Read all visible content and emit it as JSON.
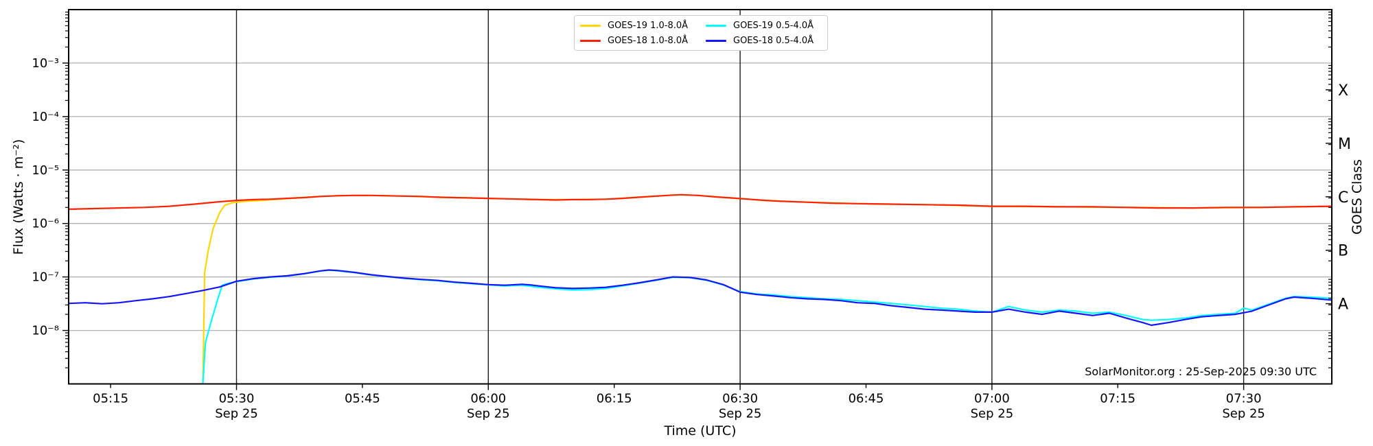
{
  "watermark": "SolarMonitor.org : 25-Sep-2025 09:30 UTC",
  "chart_data": {
    "type": "line",
    "title": "",
    "xlabel": "Time (UTC)",
    "ylabel": "Flux (Watts · m⁻²)",
    "ylabel_right": "GOES Class",
    "x_unit": "minutes_since_midnight_utc",
    "x_range": [
      310,
      460.5
    ],
    "y_log_range_exponents": [
      -9,
      -2
    ],
    "grid": {
      "on": true,
      "h_gridline_exps": [
        -3,
        -4,
        -5,
        -6,
        -7,
        -8
      ],
      "v_gridline_minutes": [
        330,
        360,
        390,
        420,
        450
      ]
    },
    "legend_position": "upper center",
    "x_ticks": [
      {
        "t": 315,
        "label": "05:15"
      },
      {
        "t": 330,
        "label": "05:30",
        "date": "Sep 25"
      },
      {
        "t": 345,
        "label": "05:45"
      },
      {
        "t": 360,
        "label": "06:00",
        "date": "Sep 25"
      },
      {
        "t": 375,
        "label": "06:15"
      },
      {
        "t": 390,
        "label": "06:30",
        "date": "Sep 25"
      },
      {
        "t": 405,
        "label": "06:45"
      },
      {
        "t": 420,
        "label": "07:00",
        "date": "Sep 25"
      },
      {
        "t": 435,
        "label": "07:15"
      },
      {
        "t": 450,
        "label": "07:30",
        "date": "Sep 25"
      }
    ],
    "y_ticks": [
      {
        "exp": -3,
        "label": "10⁻³"
      },
      {
        "exp": -4,
        "label": "10⁻⁴"
      },
      {
        "exp": -5,
        "label": "10⁻⁵"
      },
      {
        "exp": -6,
        "label": "10⁻⁶"
      },
      {
        "exp": -7,
        "label": "10⁻⁷"
      },
      {
        "exp": -8,
        "label": "10⁻⁸"
      }
    ],
    "class_labels": [
      {
        "label": "X",
        "exp": -3.5
      },
      {
        "label": "M",
        "exp": -4.5
      },
      {
        "label": "C",
        "exp": -5.5
      },
      {
        "label": "B",
        "exp": -6.5
      },
      {
        "label": "A",
        "exp": -7.5
      }
    ],
    "colors": {
      "grid_light": "#b0b0b0",
      "grid_dark": "#1a1a1a",
      "spine": "#000000"
    },
    "series": [
      {
        "name": "GOES-19 1.0-8.0Å",
        "color": "#ffd700",
        "points": [
          [
            326,
            1.05e-09
          ],
          [
            326.2,
            1.2e-07
          ],
          [
            326.6,
            3e-07
          ],
          [
            327.2,
            8e-07
          ],
          [
            328,
            1.6e-06
          ],
          [
            328.6,
            2.2e-06
          ],
          [
            329.5,
            2.45e-06
          ],
          [
            331,
            2.6e-06
          ],
          [
            333,
            2.7e-06
          ],
          [
            335,
            2.85e-06
          ],
          [
            337,
            3e-06
          ],
          [
            340,
            3.2e-06
          ],
          [
            342,
            3.3e-06
          ],
          [
            344,
            3.35e-06
          ],
          [
            346,
            3.35e-06
          ],
          [
            350,
            3.25e-06
          ],
          [
            354,
            3.1e-06
          ],
          [
            358,
            3e-06
          ],
          [
            362,
            2.9e-06
          ],
          [
            366,
            2.8e-06
          ],
          [
            370,
            2.8e-06
          ],
          [
            374,
            2.85e-06
          ],
          [
            378,
            3.1e-06
          ],
          [
            382,
            3.4e-06
          ],
          [
            383,
            3.45e-06
          ],
          [
            385,
            3.35e-06
          ],
          [
            389,
            3e-06
          ],
          [
            393,
            2.7e-06
          ],
          [
            398,
            2.5e-06
          ],
          [
            404,
            2.35e-06
          ],
          [
            412,
            2.25e-06
          ],
          [
            420,
            2.1e-06
          ],
          [
            428,
            2.05e-06
          ],
          [
            436,
            2e-06
          ],
          [
            444,
            1.95e-06
          ],
          [
            452,
            2e-06
          ],
          [
            460.5,
            2.1e-06
          ]
        ]
      },
      {
        "name": "GOES-18 1.0-8.0Å",
        "color": "#ff2200",
        "points": [
          [
            310,
            1.85e-06
          ],
          [
            313,
            1.9e-06
          ],
          [
            316,
            1.95e-06
          ],
          [
            319,
            2e-06
          ],
          [
            322,
            2.1e-06
          ],
          [
            325,
            2.3e-06
          ],
          [
            328,
            2.55e-06
          ],
          [
            330,
            2.7e-06
          ],
          [
            332,
            2.8e-06
          ],
          [
            334,
            2.85e-06
          ],
          [
            336,
            2.95e-06
          ],
          [
            338,
            3.05e-06
          ],
          [
            340,
            3.2e-06
          ],
          [
            342,
            3.3e-06
          ],
          [
            344,
            3.35e-06
          ],
          [
            346,
            3.35e-06
          ],
          [
            348,
            3.3e-06
          ],
          [
            350,
            3.25e-06
          ],
          [
            352,
            3.2e-06
          ],
          [
            354,
            3.1e-06
          ],
          [
            356,
            3.05e-06
          ],
          [
            358,
            3e-06
          ],
          [
            360,
            2.95e-06
          ],
          [
            362,
            2.9e-06
          ],
          [
            364,
            2.85e-06
          ],
          [
            366,
            2.8e-06
          ],
          [
            368,
            2.75e-06
          ],
          [
            370,
            2.8e-06
          ],
          [
            372,
            2.8e-06
          ],
          [
            374,
            2.85e-06
          ],
          [
            376,
            2.95e-06
          ],
          [
            378,
            3.1e-06
          ],
          [
            380,
            3.25e-06
          ],
          [
            382,
            3.4e-06
          ],
          [
            383,
            3.45e-06
          ],
          [
            385,
            3.35e-06
          ],
          [
            387,
            3.15e-06
          ],
          [
            389,
            3e-06
          ],
          [
            391,
            2.85e-06
          ],
          [
            393,
            2.7e-06
          ],
          [
            395,
            2.6e-06
          ],
          [
            398,
            2.5e-06
          ],
          [
            401,
            2.4e-06
          ],
          [
            404,
            2.35e-06
          ],
          [
            408,
            2.3e-06
          ],
          [
            412,
            2.25e-06
          ],
          [
            416,
            2.2e-06
          ],
          [
            420,
            2.1e-06
          ],
          [
            424,
            2.1e-06
          ],
          [
            428,
            2.05e-06
          ],
          [
            432,
            2.05e-06
          ],
          [
            436,
            2e-06
          ],
          [
            440,
            1.95e-06
          ],
          [
            444,
            1.95e-06
          ],
          [
            448,
            2e-06
          ],
          [
            452,
            2e-06
          ],
          [
            456,
            2.05e-06
          ],
          [
            460.5,
            2.1e-06
          ]
        ]
      },
      {
        "name": "GOES-19 0.5-4.0Å",
        "color": "#00ffff",
        "points": [
          [
            326,
            1.05e-09
          ],
          [
            326.3,
            6e-09
          ],
          [
            327,
            1.5e-08
          ],
          [
            327.8,
            4e-08
          ],
          [
            328.3,
            7e-08
          ],
          [
            329,
            7.6e-08
          ],
          [
            330,
            8.2e-08
          ],
          [
            332,
            9.2e-08
          ],
          [
            334,
            9.9e-08
          ],
          [
            336,
            1.04e-07
          ],
          [
            338,
            1.14e-07
          ],
          [
            340,
            1.29e-07
          ],
          [
            341,
            1.34e-07
          ],
          [
            342,
            1.31e-07
          ],
          [
            344,
            1.21e-07
          ],
          [
            346,
            1.09e-07
          ],
          [
            348,
            1.01e-07
          ],
          [
            350,
            9.4e-08
          ],
          [
            352,
            8.9e-08
          ],
          [
            354,
            8.5e-08
          ],
          [
            356,
            7.9e-08
          ],
          [
            358,
            7.5e-08
          ],
          [
            360,
            7.1e-08
          ],
          [
            362,
            6.8e-08
          ],
          [
            364,
            7e-08
          ],
          [
            366,
            6.4e-08
          ],
          [
            368,
            6e-08
          ],
          [
            370,
            5.7e-08
          ],
          [
            372,
            5.8e-08
          ],
          [
            374,
            6.1e-08
          ],
          [
            376,
            6.8e-08
          ],
          [
            378,
            7.7e-08
          ],
          [
            380,
            8.7e-08
          ],
          [
            382,
            9.9e-08
          ],
          [
            384,
            9.7e-08
          ],
          [
            386,
            8.7e-08
          ],
          [
            388,
            7.1e-08
          ],
          [
            390,
            5.3e-08
          ],
          [
            392,
            4.8e-08
          ],
          [
            394,
            4.6e-08
          ],
          [
            396,
            4.3e-08
          ],
          [
            398,
            4.1e-08
          ],
          [
            400,
            3.9e-08
          ],
          [
            402,
            3.8e-08
          ],
          [
            404,
            3.6e-08
          ],
          [
            406,
            3.4e-08
          ],
          [
            408,
            3.2e-08
          ],
          [
            410,
            3e-08
          ],
          [
            412,
            2.8e-08
          ],
          [
            414,
            2.6e-08
          ],
          [
            416,
            2.5e-08
          ],
          [
            418,
            2.3e-08
          ],
          [
            420,
            2.2e-08
          ],
          [
            422,
            2.8e-08
          ],
          [
            424,
            2.4e-08
          ],
          [
            426,
            2.2e-08
          ],
          [
            428,
            2.4e-08
          ],
          [
            430,
            2.3e-08
          ],
          [
            432,
            2.1e-08
          ],
          [
            434,
            2.2e-08
          ],
          [
            436,
            1.9e-08
          ],
          [
            438,
            1.6e-08
          ],
          [
            439,
            1.55e-08
          ],
          [
            441,
            1.6e-08
          ],
          [
            443,
            1.7e-08
          ],
          [
            445,
            1.9e-08
          ],
          [
            447,
            2e-08
          ],
          [
            449,
            2.1e-08
          ],
          [
            450,
            2.6e-08
          ],
          [
            451,
            2.4e-08
          ],
          [
            453,
            3.1e-08
          ],
          [
            455,
            4e-08
          ],
          [
            456,
            4.3e-08
          ],
          [
            458,
            4.2e-08
          ],
          [
            460.5,
            4e-08
          ]
        ]
      },
      {
        "name": "GOES-18 0.5-4.0Å",
        "color": "#1414ff",
        "points": [
          [
            310,
            3.2e-08
          ],
          [
            312,
            3.3e-08
          ],
          [
            314,
            3.15e-08
          ],
          [
            316,
            3.3e-08
          ],
          [
            318,
            3.6e-08
          ],
          [
            320,
            3.9e-08
          ],
          [
            322,
            4.3e-08
          ],
          [
            324,
            4.9e-08
          ],
          [
            326,
            5.6e-08
          ],
          [
            328,
            6.5e-08
          ],
          [
            330,
            8.3e-08
          ],
          [
            332,
            9.3e-08
          ],
          [
            334,
            1e-07
          ],
          [
            336,
            1.05e-07
          ],
          [
            338,
            1.15e-07
          ],
          [
            340,
            1.3e-07
          ],
          [
            341,
            1.35e-07
          ],
          [
            342,
            1.32e-07
          ],
          [
            344,
            1.22e-07
          ],
          [
            346,
            1.1e-07
          ],
          [
            348,
            1.02e-07
          ],
          [
            350,
            9.5e-08
          ],
          [
            352,
            9e-08
          ],
          [
            354,
            8.6e-08
          ],
          [
            356,
            8e-08
          ],
          [
            358,
            7.6e-08
          ],
          [
            360,
            7.2e-08
          ],
          [
            362,
            7e-08
          ],
          [
            364,
            7.3e-08
          ],
          [
            365,
            7.1e-08
          ],
          [
            366,
            6.8e-08
          ],
          [
            368,
            6.3e-08
          ],
          [
            370,
            6.1e-08
          ],
          [
            372,
            6.2e-08
          ],
          [
            374,
            6.4e-08
          ],
          [
            376,
            7e-08
          ],
          [
            378,
            7.8e-08
          ],
          [
            380,
            8.8e-08
          ],
          [
            382,
            1e-07
          ],
          [
            384,
            9.8e-08
          ],
          [
            386,
            8.8e-08
          ],
          [
            388,
            7.2e-08
          ],
          [
            390,
            5.2e-08
          ],
          [
            392,
            4.7e-08
          ],
          [
            394,
            4.4e-08
          ],
          [
            396,
            4.1e-08
          ],
          [
            398,
            3.9e-08
          ],
          [
            400,
            3.8e-08
          ],
          [
            402,
            3.6e-08
          ],
          [
            404,
            3.3e-08
          ],
          [
            406,
            3.2e-08
          ],
          [
            408,
            2.9e-08
          ],
          [
            410,
            2.7e-08
          ],
          [
            412,
            2.5e-08
          ],
          [
            414,
            2.4e-08
          ],
          [
            416,
            2.3e-08
          ],
          [
            418,
            2.2e-08
          ],
          [
            420,
            2.2e-08
          ],
          [
            422,
            2.5e-08
          ],
          [
            424,
            2.2e-08
          ],
          [
            426,
            2e-08
          ],
          [
            428,
            2.3e-08
          ],
          [
            430,
            2.1e-08
          ],
          [
            432,
            1.9e-08
          ],
          [
            434,
            2.1e-08
          ],
          [
            436,
            1.7e-08
          ],
          [
            438,
            1.4e-08
          ],
          [
            439,
            1.25e-08
          ],
          [
            441,
            1.4e-08
          ],
          [
            443,
            1.6e-08
          ],
          [
            445,
            1.8e-08
          ],
          [
            447,
            1.9e-08
          ],
          [
            449,
            2e-08
          ],
          [
            451,
            2.3e-08
          ],
          [
            453,
            3e-08
          ],
          [
            455,
            3.9e-08
          ],
          [
            456,
            4.2e-08
          ],
          [
            458,
            4e-08
          ],
          [
            460.5,
            3.7e-08
          ]
        ]
      }
    ]
  }
}
